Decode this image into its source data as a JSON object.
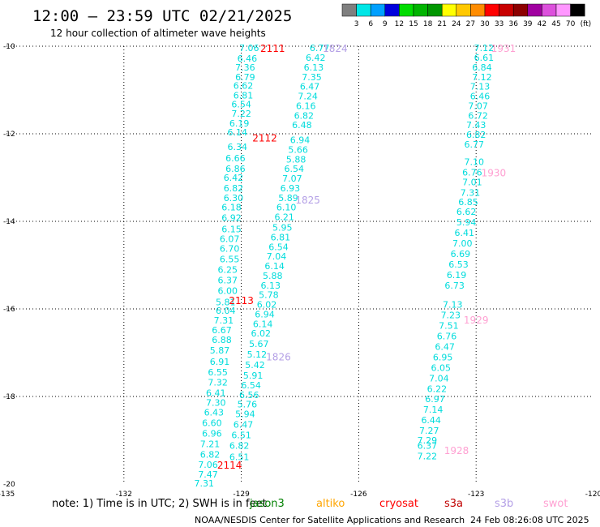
{
  "header": {
    "title": "12:00 – 23:59 UTC 02/21/2025",
    "subtitle": "12 hour collection of altimeter wave heights"
  },
  "colorbar": {
    "labels": [
      "3",
      "6",
      "9",
      "12",
      "15",
      "18",
      "21",
      "24",
      "27",
      "30",
      "33",
      "36",
      "39",
      "42",
      "45",
      "70"
    ],
    "unit": "(ft)",
    "colors": [
      "#7f7f7f",
      "#00e6e6",
      "#00a0ff",
      "#0000dc",
      "#00dc00",
      "#00b400",
      "#009600",
      "#ffff00",
      "#ffc800",
      "#ff8c00",
      "#ff0000",
      "#c80000",
      "#8c0000",
      "#a000a0",
      "#dc50dc",
      "#ff96ff",
      "#000000"
    ]
  },
  "legend": {
    "note": "note:  1) Time is in UTC;  2) SWH is in feet",
    "satellites": [
      {
        "name": "jason3",
        "color": "#008000"
      },
      {
        "name": "altiko",
        "color": "#ffa500"
      },
      {
        "name": "cryosat",
        "color": "#ff0000"
      },
      {
        "name": "s3a",
        "color": "#c00000"
      },
      {
        "name": "s3b",
        "color": "#b4a0e6"
      },
      {
        "name": "swot",
        "color": "#ffa0d2"
      }
    ]
  },
  "footer": {
    "credit": "NOAA/NESDIS Center for Satellite Applications and Research",
    "timestamp": "24 Feb 08:26:08 UTC 2025"
  },
  "chart_data": {
    "type": "scatter",
    "title": "12:00 – 23:59 UTC 02/21/2025",
    "subtitle": "12 hour collection of altimeter wave heights",
    "xlim": [
      -135,
      -120
    ],
    "ylim": [
      -20,
      -10
    ],
    "x_ticks": [
      "-135",
      "-132",
      "-129",
      "-126",
      "-123",
      "-120"
    ],
    "y_ticks": [
      "-10",
      "-12",
      "-14",
      "-16",
      "-18",
      "-20"
    ],
    "grid": true,
    "series": [
      {
        "name": "swot",
        "color": "#00dcdc",
        "points": [
          {
            "x": -128.8,
            "y": -10.04,
            "label": "7.06"
          },
          {
            "x": -128.85,
            "y": -10.28,
            "label": "6.46"
          },
          {
            "x": -128.9,
            "y": -10.48,
            "label": "7.36"
          },
          {
            "x": -128.9,
            "y": -10.7,
            "label": "6.79"
          },
          {
            "x": -128.95,
            "y": -10.9,
            "label": "6.62"
          },
          {
            "x": -128.95,
            "y": -11.12,
            "label": "6.81"
          },
          {
            "x": -129.0,
            "y": -11.32,
            "label": "6.54"
          },
          {
            "x": -129.0,
            "y": -11.54,
            "label": "7.22"
          },
          {
            "x": -129.05,
            "y": -11.76,
            "label": "6.19"
          },
          {
            "x": -129.1,
            "y": -11.96,
            "label": "6.14"
          },
          {
            "x": -129.1,
            "y": -12.3,
            "label": "6.34"
          },
          {
            "x": -129.15,
            "y": -12.56,
            "label": "6.66"
          },
          {
            "x": -129.15,
            "y": -12.8,
            "label": "6.86"
          },
          {
            "x": -129.2,
            "y": -13.0,
            "label": "6.42"
          },
          {
            "x": -129.2,
            "y": -13.24,
            "label": "6.82"
          },
          {
            "x": -129.2,
            "y": -13.46,
            "label": "6.30"
          },
          {
            "x": -129.25,
            "y": -13.68,
            "label": "6.18"
          },
          {
            "x": -129.25,
            "y": -13.92,
            "label": "6.92"
          },
          {
            "x": -129.25,
            "y": -14.18,
            "label": "6.15"
          },
          {
            "x": -129.3,
            "y": -14.4,
            "label": "6.07"
          },
          {
            "x": -129.3,
            "y": -14.62,
            "label": "6.70"
          },
          {
            "x": -129.3,
            "y": -14.86,
            "label": "6.55"
          },
          {
            "x": -129.35,
            "y": -15.1,
            "label": "6.25"
          },
          {
            "x": -129.35,
            "y": -15.34,
            "label": "6.37"
          },
          {
            "x": -129.35,
            "y": -15.58,
            "label": "6.00"
          },
          {
            "x": -129.4,
            "y": -15.84,
            "label": "5.81"
          },
          {
            "x": -129.4,
            "y": -16.04,
            "label": "6.04"
          },
          {
            "x": -129.45,
            "y": -16.26,
            "label": "7.31"
          },
          {
            "x": -129.5,
            "y": -16.48,
            "label": "6.67"
          },
          {
            "x": -129.5,
            "y": -16.7,
            "label": "6.88"
          },
          {
            "x": -129.55,
            "y": -16.94,
            "label": "5.87"
          },
          {
            "x": -129.55,
            "y": -17.2,
            "label": "6.91"
          },
          {
            "x": -129.6,
            "y": -17.44,
            "label": "6.55"
          },
          {
            "x": -129.6,
            "y": -17.68,
            "label": "7.32"
          },
          {
            "x": -129.65,
            "y": -17.92,
            "label": "6.41"
          },
          {
            "x": -129.65,
            "y": -18.14,
            "label": "7.30"
          },
          {
            "x": -129.7,
            "y": -18.36,
            "label": "6.43"
          },
          {
            "x": -129.75,
            "y": -18.6,
            "label": "6.60"
          },
          {
            "x": -129.75,
            "y": -18.84,
            "label": "6.96"
          },
          {
            "x": -129.8,
            "y": -19.08,
            "label": "7.21"
          },
          {
            "x": -129.8,
            "y": -19.32,
            "label": "6.82"
          },
          {
            "x": -129.85,
            "y": -19.56,
            "label": "7.06"
          },
          {
            "x": -129.85,
            "y": -19.78,
            "label": "7.47"
          },
          {
            "x": -129.95,
            "y": -19.98,
            "label": "7.31"
          },
          {
            "x": -127.0,
            "y": -10.04,
            "label": "6.77"
          },
          {
            "x": -127.1,
            "y": -10.26,
            "label": "6.42"
          },
          {
            "x": -127.15,
            "y": -10.48,
            "label": "6.13"
          },
          {
            "x": -127.2,
            "y": -10.7,
            "label": "7.35"
          },
          {
            "x": -127.25,
            "y": -10.92,
            "label": "6.47"
          },
          {
            "x": -127.3,
            "y": -11.14,
            "label": "7.24"
          },
          {
            "x": -127.35,
            "y": -11.36,
            "label": "6.16"
          },
          {
            "x": -127.4,
            "y": -11.58,
            "label": "6.82"
          },
          {
            "x": -127.45,
            "y": -11.8,
            "label": "6.48"
          },
          {
            "x": -127.5,
            "y": -12.14,
            "label": "6.94"
          },
          {
            "x": -127.55,
            "y": -12.36,
            "label": "5.66"
          },
          {
            "x": -127.6,
            "y": -12.58,
            "label": "5.88"
          },
          {
            "x": -127.65,
            "y": -12.8,
            "label": "6.54"
          },
          {
            "x": -127.7,
            "y": -13.02,
            "label": "7.07"
          },
          {
            "x": -127.75,
            "y": -13.24,
            "label": "6.93"
          },
          {
            "x": -127.8,
            "y": -13.46,
            "label": "5.89"
          },
          {
            "x": -127.85,
            "y": -13.68,
            "label": "6.10"
          },
          {
            "x": -127.9,
            "y": -13.9,
            "label": "6.21"
          },
          {
            "x": -127.95,
            "y": -14.14,
            "label": "5.95"
          },
          {
            "x": -128.0,
            "y": -14.36,
            "label": "6.81"
          },
          {
            "x": -128.05,
            "y": -14.58,
            "label": "6.54"
          },
          {
            "x": -128.1,
            "y": -14.8,
            "label": "7.04"
          },
          {
            "x": -128.15,
            "y": -15.02,
            "label": "6.14"
          },
          {
            "x": -128.2,
            "y": -15.24,
            "label": "5.88"
          },
          {
            "x": -128.25,
            "y": -15.46,
            "label": "6.13"
          },
          {
            "x": -128.3,
            "y": -15.68,
            "label": "5.78"
          },
          {
            "x": -128.35,
            "y": -15.9,
            "label": "6.02"
          },
          {
            "x": -128.4,
            "y": -16.12,
            "label": "6.94"
          },
          {
            "x": -128.45,
            "y": -16.34,
            "label": "6.14"
          },
          {
            "x": -128.5,
            "y": -16.56,
            "label": "6.02"
          },
          {
            "x": -128.55,
            "y": -16.8,
            "label": "5.67"
          },
          {
            "x": -128.6,
            "y": -17.04,
            "label": "5.12"
          },
          {
            "x": -128.65,
            "y": -17.28,
            "label": "5.42"
          },
          {
            "x": -128.7,
            "y": -17.52,
            "label": "5.91"
          },
          {
            "x": -128.75,
            "y": -17.74,
            "label": "6.54"
          },
          {
            "x": -128.8,
            "y": -17.96,
            "label": "6.56"
          },
          {
            "x": -128.85,
            "y": -18.18,
            "label": "5.76"
          },
          {
            "x": -128.9,
            "y": -18.4,
            "label": "5.94"
          },
          {
            "x": -128.95,
            "y": -18.64,
            "label": "6.47"
          },
          {
            "x": -129.0,
            "y": -18.88,
            "label": "6.51"
          },
          {
            "x": -129.05,
            "y": -19.12,
            "label": "6.82"
          },
          {
            "x": -129.05,
            "y": -19.38,
            "label": "6.51"
          },
          {
            "x": -122.8,
            "y": -10.04,
            "label": "7.12"
          },
          {
            "x": -122.8,
            "y": -10.26,
            "label": "6.61"
          },
          {
            "x": -122.85,
            "y": -10.48,
            "label": "6.84"
          },
          {
            "x": -122.85,
            "y": -10.7,
            "label": "7.12"
          },
          {
            "x": -122.9,
            "y": -10.92,
            "label": "7.13"
          },
          {
            "x": -122.9,
            "y": -11.14,
            "label": "6.46"
          },
          {
            "x": -122.95,
            "y": -11.36,
            "label": "7.07"
          },
          {
            "x": -122.95,
            "y": -11.58,
            "label": "6.72"
          },
          {
            "x": -123.0,
            "y": -11.8,
            "label": "7.43"
          },
          {
            "x": -123.0,
            "y": -12.02,
            "label": "6.82"
          },
          {
            "x": -123.05,
            "y": -12.24,
            "label": "6.77"
          },
          {
            "x": -123.05,
            "y": -12.64,
            "label": "7.10"
          },
          {
            "x": -123.1,
            "y": -12.88,
            "label": "6.76"
          },
          {
            "x": -123.1,
            "y": -13.1,
            "label": "7.01"
          },
          {
            "x": -123.15,
            "y": -13.34,
            "label": "7.31"
          },
          {
            "x": -123.2,
            "y": -13.56,
            "label": "6.85"
          },
          {
            "x": -123.25,
            "y": -13.78,
            "label": "6.62"
          },
          {
            "x": -123.25,
            "y": -14.02,
            "label": "5.94"
          },
          {
            "x": -123.3,
            "y": -14.26,
            "label": "6.41"
          },
          {
            "x": -123.35,
            "y": -14.5,
            "label": "7.00"
          },
          {
            "x": -123.4,
            "y": -14.74,
            "label": "6.69"
          },
          {
            "x": -123.45,
            "y": -14.98,
            "label": "6.53"
          },
          {
            "x": -123.5,
            "y": -15.22,
            "label": "6.19"
          },
          {
            "x": -123.55,
            "y": -15.46,
            "label": "6.73"
          },
          {
            "x": -123.6,
            "y": -15.9,
            "label": "7.13"
          },
          {
            "x": -123.65,
            "y": -16.14,
            "label": "7.23"
          },
          {
            "x": -123.7,
            "y": -16.38,
            "label": "7.51"
          },
          {
            "x": -123.75,
            "y": -16.62,
            "label": "6.76"
          },
          {
            "x": -123.8,
            "y": -16.86,
            "label": "6.47"
          },
          {
            "x": -123.85,
            "y": -17.1,
            "label": "6.95"
          },
          {
            "x": -123.9,
            "y": -17.34,
            "label": "6.05"
          },
          {
            "x": -123.95,
            "y": -17.58,
            "label": "7.04"
          },
          {
            "x": -124.0,
            "y": -17.82,
            "label": "6.22"
          },
          {
            "x": -124.05,
            "y": -18.06,
            "label": "6.97"
          },
          {
            "x": -124.1,
            "y": -18.3,
            "label": "7.14"
          },
          {
            "x": -124.15,
            "y": -18.54,
            "label": "6.44"
          },
          {
            "x": -124.2,
            "y": -18.78,
            "label": "7.27"
          },
          {
            "x": -124.25,
            "y": -19.0,
            "label": "7.29"
          },
          {
            "x": -124.25,
            "y": -19.12,
            "label": "6.37"
          },
          {
            "x": -124.25,
            "y": -19.36,
            "label": "7.22"
          }
        ]
      }
    ],
    "pass_labels": [
      {
        "text": "2111",
        "x": -128.2,
        "y": -10.04,
        "color": "#ff0000"
      },
      {
        "text": "1824",
        "x": -126.6,
        "y": -10.04,
        "color": "#b4a0e6"
      },
      {
        "text": "1931",
        "x": -122.3,
        "y": -10.04,
        "color": "#ffa0d2"
      },
      {
        "text": "2112",
        "x": -128.4,
        "y": -12.08,
        "color": "#ff0000"
      },
      {
        "text": "1930",
        "x": -122.55,
        "y": -12.88,
        "color": "#ffa0d2"
      },
      {
        "text": "1825",
        "x": -127.3,
        "y": -13.5,
        "color": "#b4a0e6"
      },
      {
        "text": "2113",
        "x": -129.0,
        "y": -15.8,
        "color": "#ff0000"
      },
      {
        "text": "1929",
        "x": -123.0,
        "y": -16.24,
        "color": "#ffa0d2"
      },
      {
        "text": "1826",
        "x": -128.05,
        "y": -17.08,
        "color": "#b4a0e6"
      },
      {
        "text": "2114",
        "x": -129.3,
        "y": -19.56,
        "color": "#ff0000"
      },
      {
        "text": "1928",
        "x": -123.5,
        "y": -19.22,
        "color": "#ffa0d2"
      }
    ]
  }
}
